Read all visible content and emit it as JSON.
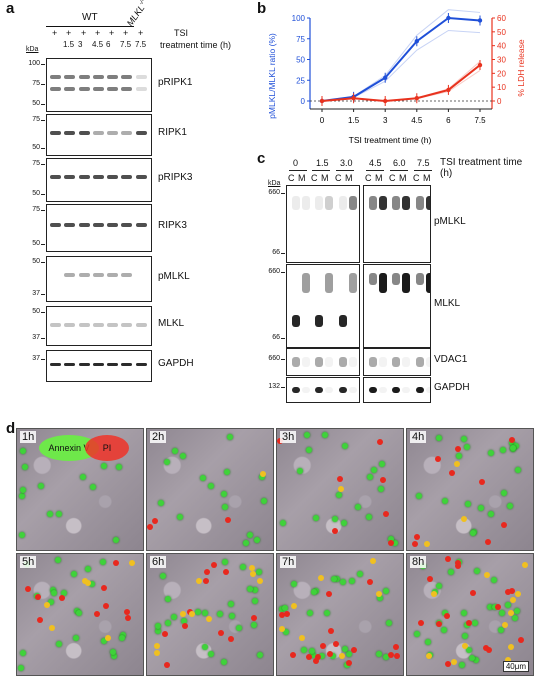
{
  "panels": {
    "a": "a",
    "b": "b",
    "c": "c",
    "d": "d"
  },
  "panel_a": {
    "wt_label": "WT",
    "mlkl_label": "MLKL",
    "mlkl_sup": "-/-",
    "tsi_label": "TSI",
    "plus_signs": [
      "+",
      "+",
      "+",
      "+",
      "+",
      "+",
      "+"
    ],
    "treatment_label": "treatment time (h)",
    "times": [
      "1.5",
      "3",
      "4.5",
      "6",
      "7.5",
      "7.5"
    ],
    "kda": "kDa",
    "blots": [
      {
        "name": "pRIPK1",
        "markers": [
          "100",
          "75",
          "50"
        ]
      },
      {
        "name": "RIPK1",
        "markers": [
          "75",
          "50"
        ]
      },
      {
        "name": "pRIPK3",
        "markers": [
          "75",
          "50"
        ]
      },
      {
        "name": "RIPK3",
        "markers": [
          "75",
          "50"
        ]
      },
      {
        "name": "pMLKL",
        "markers": [
          "50",
          "37"
        ]
      },
      {
        "name": "MLKL",
        "markers": [
          "50",
          "37"
        ]
      },
      {
        "name": "GAPDH",
        "markers": [
          "37"
        ]
      }
    ]
  },
  "chart_data": {
    "type": "line",
    "xlabel": "TSI treatment time (h)",
    "categories": [
      "0",
      "1.5",
      "3",
      "4.5",
      "6",
      "7.5"
    ],
    "y_left": {
      "label": "pMLKL/MLKL ratio (%)",
      "ticks": [
        "0",
        "25",
        "50",
        "75",
        "100"
      ],
      "ylim": [
        0,
        100
      ],
      "color": "#1f4fd8"
    },
    "y_right": {
      "label": "% LDH release",
      "ticks": [
        "0",
        "10",
        "20",
        "30",
        "40",
        "50",
        "60"
      ],
      "ylim": [
        0,
        60
      ],
      "color": "#e8321e"
    },
    "series": [
      {
        "axis": "left",
        "values": [
          0,
          5,
          28,
          72,
          100,
          97
        ],
        "color": "#1f4fd8"
      },
      {
        "axis": "right",
        "values": [
          0,
          2,
          0,
          2,
          8,
          26
        ],
        "color": "#e8321e"
      }
    ]
  },
  "panel_c": {
    "times_left": [
      "0",
      "1.5",
      "3.0"
    ],
    "times_right": [
      "4.5",
      "6.0",
      "7.5"
    ],
    "time_label": "TSI treatment time (h)",
    "fractions": [
      "C",
      "M",
      "C",
      "M",
      "C",
      "M"
    ],
    "kda": "kDa",
    "blots": [
      {
        "name": "pMLKL",
        "markers": [
          "660",
          "66"
        ]
      },
      {
        "name": "MLKL",
        "markers": [
          "660",
          "66"
        ]
      },
      {
        "name": "VDAC1",
        "markers": [
          "660"
        ]
      },
      {
        "name": "GAPDH",
        "markers": [
          "132"
        ]
      }
    ]
  },
  "panel_d": {
    "legend_annexin": "Annexin V",
    "legend_pi": "PI",
    "timepoints": [
      "1h",
      "2h",
      "3h",
      "4h",
      "5h",
      "6h",
      "7h",
      "8h"
    ],
    "scale_bar": "40μm"
  }
}
